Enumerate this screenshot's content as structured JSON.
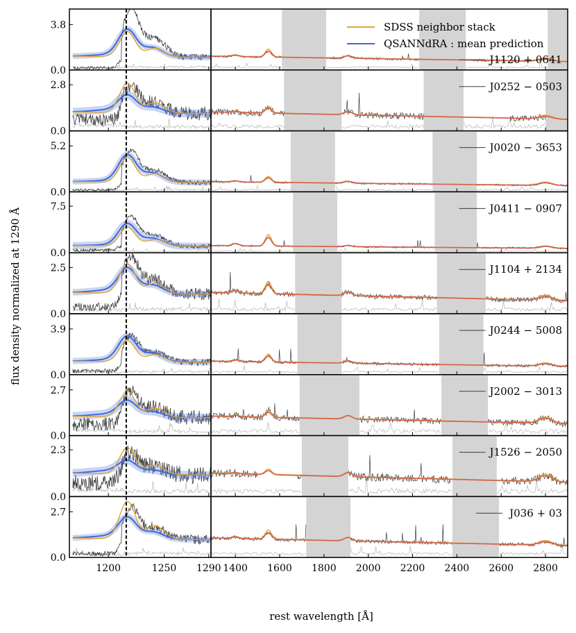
{
  "chart_data": {
    "type": "line",
    "title": "",
    "xlabel": "rest wavelength [Å]",
    "ylabel": "flux density normalized at 1290 Å",
    "legend": {
      "placement": "top-right",
      "entries": [
        {
          "label": "SDSS neighbor stack",
          "color": "#e0a532"
        },
        {
          "label": "QSANNdRA : mean prediction",
          "color": "#3f68d6"
        }
      ]
    },
    "colors": {
      "observed": "#3a3a3a",
      "noise": "#b4b4b4",
      "stack": "#e0a532",
      "prediction": "#3f68d6",
      "fit": "#d1624f",
      "mask": "#d4d4d4",
      "lya_line": "#000000"
    },
    "reference_line_x": 1216,
    "left_panel": {
      "xlim": [
        1165,
        1292
      ],
      "xticks": [
        1200,
        1250,
        1290
      ],
      "xtick_labels": [
        "1200",
        "1250",
        "1290"
      ]
    },
    "right_panel": {
      "xlim": [
        1290,
        2900
      ],
      "xticks": [
        1400,
        1600,
        1800,
        2000,
        2200,
        2400,
        2600,
        2800
      ],
      "xtick_labels": [
        "1400",
        "1600",
        "1800",
        "2000",
        "2200",
        "2400",
        "2600",
        "2800"
      ]
    },
    "panels": [
      {
        "name": "J1120 + 0641",
        "ylim": [
          0,
          5.1
        ],
        "ytick_value": 3.8,
        "ytick_label": "3.8",
        "peak": 2.2,
        "stack_peak": 2.1,
        "obs_peak": 4.0,
        "noisy": 0.25,
        "masks": [
          [
            1610,
            1810
          ],
          [
            2230,
            2440
          ],
          [
            2810,
            2900
          ]
        ],
        "gaps": [],
        "civ": 0.5,
        "mgii": 0.2,
        "red_level": 1.0
      },
      {
        "name": "J0252 − 0503",
        "ylim": [
          0,
          3.7
        ],
        "ytick_value": 2.8,
        "ytick_label": "2.8",
        "peak": 1.0,
        "stack_peak": 1.8,
        "obs_peak": 1.6,
        "noisy": 0.9,
        "masks": [
          [
            1620,
            1880
          ],
          [
            2250,
            2430
          ],
          [
            2800,
            2900
          ]
        ],
        "gaps": [
          [
            1640,
            1890
          ],
          [
            2430,
            2640
          ]
        ],
        "civ": 0.3,
        "mgii": 0.15,
        "red_level": 1.0
      },
      {
        "name": "J0020 − 3653",
        "ylim": [
          0,
          6.9
        ],
        "ytick_value": 5.2,
        "ytick_label": "5.2",
        "peak": 3.0,
        "stack_peak": 2.8,
        "obs_peak": 3.5,
        "noisy": 0.3,
        "masks": [
          [
            1650,
            1850
          ],
          [
            2290,
            2490
          ]
        ],
        "gaps": [],
        "civ": 0.5,
        "mgii": 0.3,
        "red_level": 1.0
      },
      {
        "name": "J0411 − 0907",
        "ylim": [
          0,
          9.8
        ],
        "ytick_value": 7.5,
        "ytick_label": "7.5",
        "peak": 3.5,
        "stack_peak": 3.0,
        "obs_peak": 4.5,
        "noisy": 0.6,
        "masks": [
          [
            1660,
            1860
          ],
          [
            2300,
            2490
          ]
        ],
        "gaps": [],
        "civ": 1.4,
        "mgii": 0.3,
        "red_level": 1.0
      },
      {
        "name": "J1104 + 2134",
        "ylim": [
          0,
          3.3
        ],
        "ytick_value": 2.5,
        "ytick_label": "2.5",
        "peak": 1.3,
        "stack_peak": 1.6,
        "obs_peak": 1.9,
        "noisy": 0.5,
        "masks": [
          [
            1670,
            1880
          ],
          [
            2310,
            2530
          ]
        ],
        "gaps": [],
        "civ": 0.5,
        "mgii": 0.2,
        "red_level": 1.0
      },
      {
        "name": "J0244 − 5008",
        "ylim": [
          0,
          5.2
        ],
        "ytick_value": 3.9,
        "ytick_label": "3.9",
        "peak": 2.1,
        "stack_peak": 1.8,
        "obs_peak": 2.1,
        "noisy": 0.4,
        "masks": [
          [
            1680,
            1880
          ],
          [
            2320,
            2520
          ]
        ],
        "gaps": [],
        "civ": 0.5,
        "mgii": 0.2,
        "red_level": 1.0
      },
      {
        "name": "J2002 − 3013",
        "ylim": [
          0,
          3.6
        ],
        "ytick_value": 2.7,
        "ytick_label": "2.7",
        "peak": 0.9,
        "stack_peak": 1.5,
        "obs_peak": 1.4,
        "noisy": 0.9,
        "masks": [
          [
            1690,
            1960
          ],
          [
            2330,
            2540
          ]
        ],
        "gaps": [],
        "civ": 0.3,
        "mgii": 0.3,
        "red_level": 1.0
      },
      {
        "name": "J1526 − 2050",
        "ylim": [
          0,
          3.0
        ],
        "ytick_value": 2.3,
        "ytick_label": "2.3",
        "peak": 0.6,
        "stack_peak": 1.3,
        "obs_peak": 1.0,
        "noisy": 0.9,
        "masks": [
          [
            1700,
            1910
          ],
          [
            2380,
            2580
          ]
        ],
        "gaps": [
          [
            1500,
            1680
          ],
          [
            2370,
            2600
          ]
        ],
        "civ": 0.2,
        "mgii": 0.3,
        "red_level": 1.0
      },
      {
        "name": "J036 + 03",
        "ylim": [
          0,
          3.6
        ],
        "ytick_value": 2.7,
        "ytick_label": "2.7",
        "peak": 1.2,
        "stack_peak": 2.2,
        "obs_peak": 1.8,
        "noisy": 0.3,
        "masks": [
          [
            1720,
            1920
          ],
          [
            2380,
            2590
          ]
        ],
        "gaps": [
          [
            1720,
            1920
          ]
        ],
        "civ": 0.4,
        "mgii": 0.2,
        "red_level": 1.0
      }
    ],
    "ytick_zero_label": "0.0"
  }
}
